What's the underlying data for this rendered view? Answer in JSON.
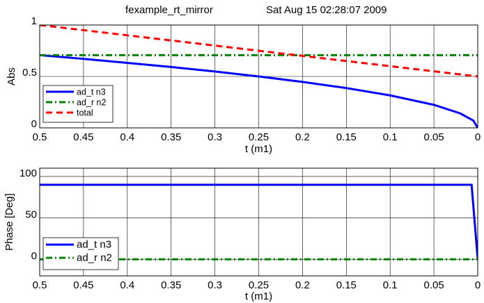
{
  "header": {
    "figure_name": "fexample_rt_mirror",
    "timestamp": "Sat Aug 15 02:28:07 2009"
  },
  "colors": {
    "blue": "#0000ff",
    "green": "#008000",
    "red": "#ff0000",
    "grid": "#000000"
  },
  "chart_data": [
    {
      "type": "line",
      "ylabel": "Abs",
      "xlabel": "t  (m1)",
      "xlim": [
        0.5,
        0
      ],
      "ylim": [
        0,
        1
      ],
      "xticks": [
        "0.5",
        "0.45",
        "0.4",
        "0.35",
        "0.3",
        "0.25",
        "0.2",
        "0.15",
        "0.1",
        "0.05",
        "0"
      ],
      "yticks": [
        "0",
        "0.5",
        "1"
      ],
      "grid": true,
      "legend_position": "bottom-left",
      "series": [
        {
          "name": "ad_t n3",
          "color": "#0000ff",
          "style": "solid",
          "x": [
            0.5,
            0.45,
            0.4,
            0.35,
            0.3,
            0.25,
            0.2,
            0.15,
            0.1,
            0.05,
            0.02,
            0.005,
            0
          ],
          "y": [
            0.707,
            0.671,
            0.632,
            0.592,
            0.548,
            0.5,
            0.447,
            0.387,
            0.316,
            0.224,
            0.141,
            0.071,
            0.0
          ]
        },
        {
          "name": "ad_r n2",
          "color": "#008000",
          "style": "dashdot",
          "x": [
            0.5,
            0
          ],
          "y": [
            0.707,
            0.707
          ]
        },
        {
          "name": "total",
          "color": "#ff0000",
          "style": "dashed",
          "x": [
            0.5,
            0
          ],
          "y": [
            1.0,
            0.5
          ]
        }
      ]
    },
    {
      "type": "line",
      "ylabel": "Phase [Deg]",
      "xlabel": "t  (m1)",
      "xlim": [
        0.5,
        0
      ],
      "ylim": [
        -20,
        110
      ],
      "xticks": [
        "0.5",
        "0.45",
        "0.4",
        "0.35",
        "0.3",
        "0.25",
        "0.2",
        "0.15",
        "0.1",
        "0.05",
        "0"
      ],
      "yticks": [
        "0",
        "50",
        "100"
      ],
      "grid": true,
      "legend_position": "bottom-left",
      "series": [
        {
          "name": "ad_t n3",
          "color": "#0000ff",
          "style": "solid",
          "x": [
            0.5,
            0.007,
            0
          ],
          "y": [
            90,
            90,
            0
          ]
        },
        {
          "name": "ad_r n2",
          "color": "#008000",
          "style": "dashdot",
          "x": [
            0.5,
            0
          ],
          "y": [
            0,
            0
          ]
        }
      ]
    }
  ]
}
